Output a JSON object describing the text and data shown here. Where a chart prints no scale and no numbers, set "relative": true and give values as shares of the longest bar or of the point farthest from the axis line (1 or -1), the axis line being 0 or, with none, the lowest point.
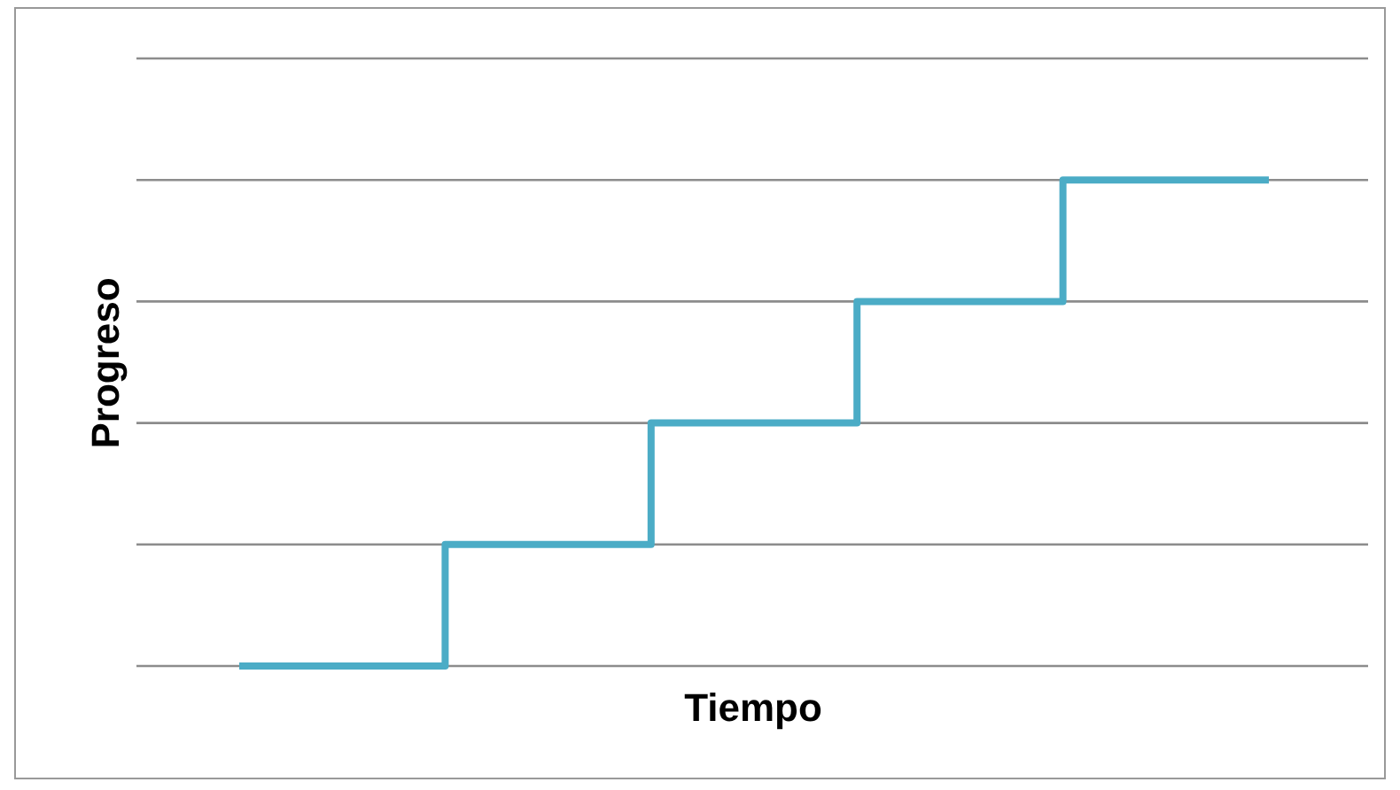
{
  "chart_data": {
    "type": "step",
    "xlabel": "Tiempo",
    "ylabel": "Progreso",
    "relative": true,
    "grid": "y",
    "color": "#4bacc6",
    "categories": [
      null,
      null,
      null,
      null,
      null,
      null
    ],
    "values": [
      0,
      0.25,
      0.5,
      0.75,
      1,
      1
    ]
  }
}
